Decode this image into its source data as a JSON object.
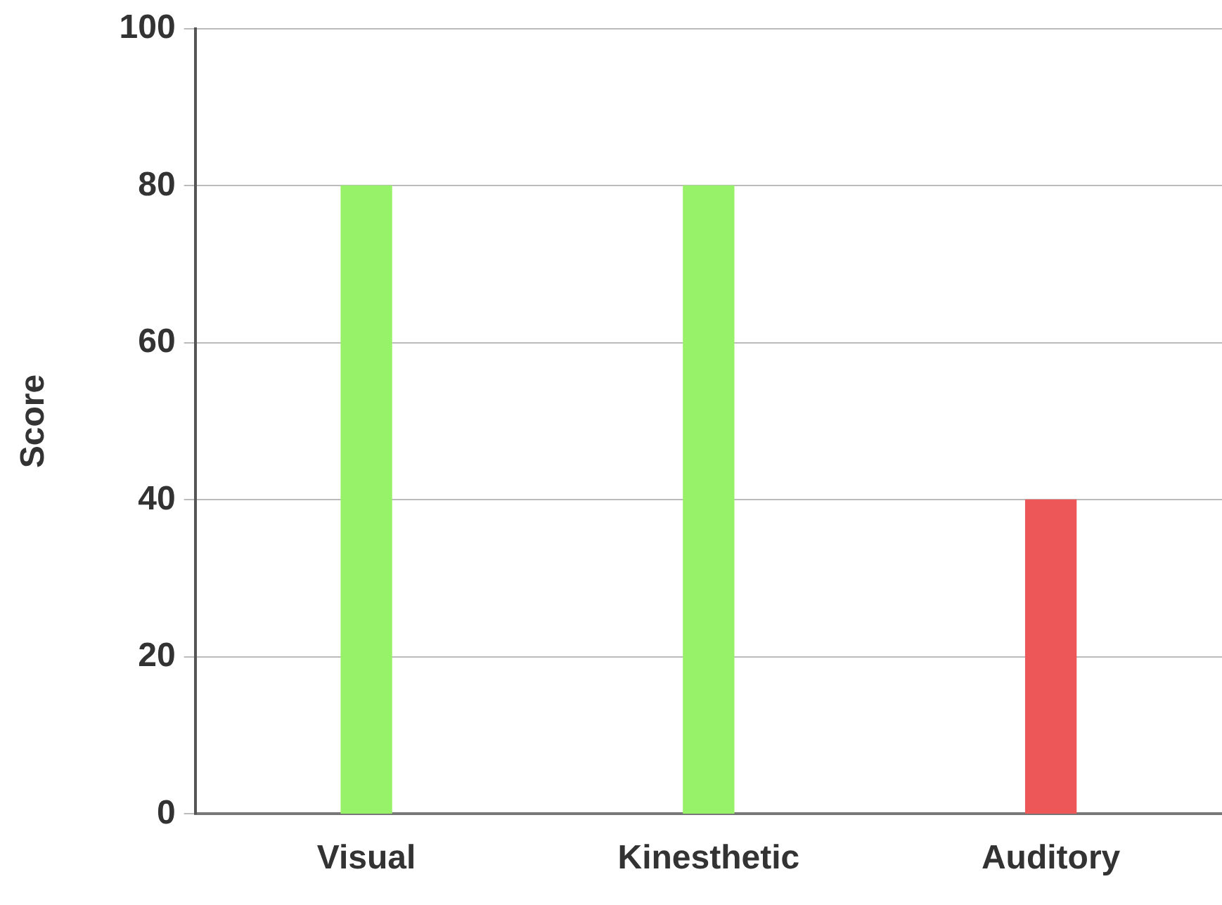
{
  "chart_data": {
    "type": "bar",
    "ylabel": "Score",
    "categories": [
      "Visual",
      "Kinesthetic",
      "Auditory"
    ],
    "values": [
      80,
      80,
      40
    ],
    "colors": [
      "#97f26a",
      "#97f26a",
      "#ee5757"
    ],
    "ylim": [
      0,
      100
    ],
    "yticks": [
      0,
      20,
      40,
      60,
      80,
      100
    ],
    "grid": "y",
    "legend": false
  }
}
